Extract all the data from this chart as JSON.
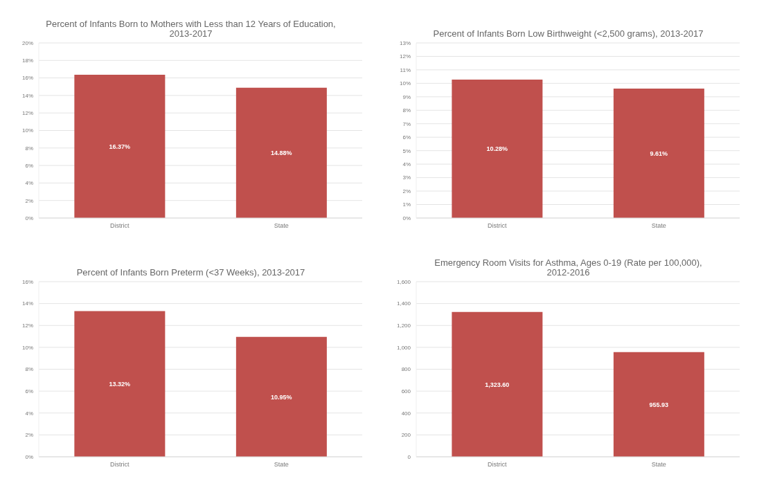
{
  "chart_data": [
    {
      "type": "bar",
      "title": "Percent of Infants Born to Mothers with Less than 12 Years of Education, 2013-2017",
      "categories": [
        "District",
        "State"
      ],
      "values": [
        16.37,
        14.88
      ],
      "value_labels": [
        "16.37%",
        "14.88%"
      ],
      "color": "#c0504d",
      "ylim": [
        0,
        20
      ],
      "yticks": [
        {
          "value": 0,
          "label": "0%"
        },
        {
          "value": 2,
          "label": "2%"
        },
        {
          "value": 4,
          "label": "4%"
        },
        {
          "value": 6,
          "label": "6%"
        },
        {
          "value": 8,
          "label": "8%"
        },
        {
          "value": 10,
          "label": "10%"
        },
        {
          "value": 12,
          "label": "12%"
        },
        {
          "value": 14,
          "label": "14%"
        },
        {
          "value": 16,
          "label": "16%"
        },
        {
          "value": 18,
          "label": "18%"
        },
        {
          "value": 20,
          "label": "20%"
        }
      ],
      "grid": "y",
      "legend": false
    },
    {
      "type": "bar",
      "title": "Percent of Infants Born Low Birthweight (<2,500 grams), 2013-2017",
      "categories": [
        "District",
        "State"
      ],
      "values": [
        10.28,
        9.61
      ],
      "value_labels": [
        "10.28%",
        "9.61%"
      ],
      "color": "#c0504d",
      "ylim": [
        0,
        13
      ],
      "yticks": [
        {
          "value": 0,
          "label": "0%"
        },
        {
          "value": 1,
          "label": "1%"
        },
        {
          "value": 2,
          "label": "2%"
        },
        {
          "value": 3,
          "label": "3%"
        },
        {
          "value": 4,
          "label": "4%"
        },
        {
          "value": 5,
          "label": "5%"
        },
        {
          "value": 6,
          "label": "6%"
        },
        {
          "value": 7,
          "label": "7%"
        },
        {
          "value": 8,
          "label": "8%"
        },
        {
          "value": 9,
          "label": "9%"
        },
        {
          "value": 10,
          "label": "10%"
        },
        {
          "value": 11,
          "label": "11%"
        },
        {
          "value": 12,
          "label": "12%"
        },
        {
          "value": 13,
          "label": "13%"
        }
      ],
      "grid": "y",
      "legend": false
    },
    {
      "type": "bar",
      "title": "Percent of Infants Born Preterm (<37 Weeks), 2013-2017",
      "categories": [
        "District",
        "State"
      ],
      "values": [
        13.32,
        10.95
      ],
      "value_labels": [
        "13.32%",
        "10.95%"
      ],
      "color": "#c0504d",
      "ylim": [
        0,
        16
      ],
      "yticks": [
        {
          "value": 0,
          "label": "0%"
        },
        {
          "value": 2,
          "label": "2%"
        },
        {
          "value": 4,
          "label": "4%"
        },
        {
          "value": 6,
          "label": "6%"
        },
        {
          "value": 8,
          "label": "8%"
        },
        {
          "value": 10,
          "label": "10%"
        },
        {
          "value": 12,
          "label": "12%"
        },
        {
          "value": 14,
          "label": "14%"
        },
        {
          "value": 16,
          "label": "16%"
        }
      ],
      "grid": "y",
      "legend": false
    },
    {
      "type": "bar",
      "title": "Emergency Room Visits for Asthma, Ages 0-19 (Rate per 100,000), 2012-2016",
      "categories": [
        "District",
        "State"
      ],
      "values": [
        1323.6,
        955.93
      ],
      "value_labels": [
        "1,323.60",
        "955.93"
      ],
      "color": "#c0504d",
      "ylim": [
        0,
        1600
      ],
      "yticks": [
        0,
        200,
        400,
        600,
        800,
        {
          "value": 1000,
          "label": "1,000"
        },
        {
          "value": 1200,
          "label": "1,200"
        },
        {
          "value": 1400,
          "label": "1,400"
        },
        {
          "value": 1600,
          "label": "1,600"
        }
      ],
      "grid": "y",
      "legend": false
    }
  ]
}
